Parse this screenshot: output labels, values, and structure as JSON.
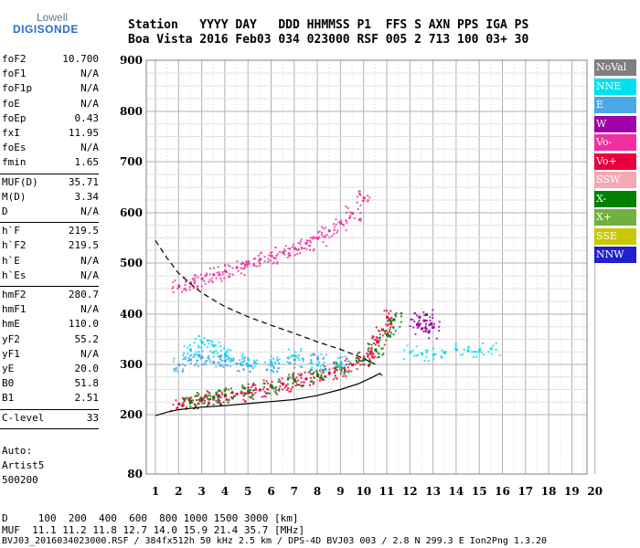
{
  "logo": {
    "line1": "Lowell",
    "line2": "DIGISONDE"
  },
  "header": {
    "line1": "Station   YYYY DAY   DDD HHMMSS P1  FFS S AXN PPS IGA PS",
    "line2": "Boa Vista 2016 Feb03 034 023000 RSF 005 2 713 100 03+ 30"
  },
  "params": [
    {
      "group": [
        {
          "k": "foF2",
          "v": "10.700"
        },
        {
          "k": "foF1",
          "v": "N/A"
        },
        {
          "k": "foF1p",
          "v": "N/A"
        },
        {
          "k": "foE",
          "v": "N/A"
        },
        {
          "k": "foEp",
          "v": "0.43"
        },
        {
          "k": "fxI",
          "v": "11.95"
        },
        {
          "k": "foEs",
          "v": "N/A"
        },
        {
          "k": "fmin",
          "v": "1.65"
        }
      ]
    },
    {
      "group": [
        {
          "k": "MUF(D)",
          "v": "35.71"
        },
        {
          "k": "M(D)",
          "v": "3.34"
        },
        {
          "k": "D",
          "v": "N/A"
        }
      ]
    },
    {
      "group": [
        {
          "k": "h`F",
          "v": "219.5"
        },
        {
          "k": "h`F2",
          "v": "219.5"
        },
        {
          "k": "h`E",
          "v": "N/A"
        },
        {
          "k": "h`Es",
          "v": "N/A"
        }
      ]
    },
    {
      "group": [
        {
          "k": "hmF2",
          "v": "280.7"
        },
        {
          "k": "hmF1",
          "v": "N/A"
        },
        {
          "k": "hmE",
          "v": "110.0"
        },
        {
          "k": "yF2",
          "v": "55.2"
        },
        {
          "k": "yF1",
          "v": "N/A"
        },
        {
          "k": "yE",
          "v": "20.0"
        },
        {
          "k": "B0",
          "v": "51.8"
        },
        {
          "k": "B1",
          "v": "2.51"
        }
      ]
    },
    {
      "group": [
        {
          "k": "C-level",
          "v": "33"
        }
      ]
    }
  ],
  "auto": {
    "line1": "Auto:",
    "line2": "Artist5",
    "line3": "500200"
  },
  "footer": {
    "d_row": "D     100  200  400  600  800 1000 1500 3000 [km]",
    "muf_row": "MUF  11.1 11.2 11.8 12.7 14.0 15.9 21.4 35.7 [MHz]",
    "file_row": "BVJ03_2016034023000.RSF / 384fx512h 50 kHz 2.5 km / DPS-4D BVJ03 003 / 2.8 N 299.3 E Ion2Png 1.3.20"
  },
  "legend": [
    {
      "label": "NoVal",
      "color": "#7f7f7f"
    },
    {
      "label": "NNE",
      "color": "#00e0f0"
    },
    {
      "label": "E",
      "color": "#4aa8e8"
    },
    {
      "label": "W",
      "color": "#a000a8"
    },
    {
      "label": "Vo-",
      "color": "#f030a0"
    },
    {
      "label": "Vo+",
      "color": "#e8003c"
    },
    {
      "label": "SSW",
      "color": "#f4a8b0"
    },
    {
      "label": "X-",
      "color": "#008000"
    },
    {
      "label": "X+",
      "color": "#70b040"
    },
    {
      "label": "SSE",
      "color": "#c8c800"
    },
    {
      "label": "NNW",
      "color": "#2020d0"
    }
  ],
  "chart_data": {
    "type": "scatter",
    "x_ticks": [
      1,
      2,
      3,
      4,
      5,
      6,
      7,
      8,
      9,
      10,
      11,
      12,
      13,
      14,
      15,
      16,
      17,
      18,
      19,
      20
    ],
    "y_ticks": [
      80,
      200,
      300,
      400,
      500,
      600,
      700,
      800,
      900
    ],
    "xlim": [
      1,
      20
    ],
    "ylim": [
      80,
      900
    ],
    "grid": true,
    "series": [
      {
        "name": "Vo+",
        "color": "#e8003c",
        "x": [
          2.0,
          2.5,
          3.0,
          3.5,
          4.0,
          4.5,
          5.0,
          5.5,
          6.0,
          6.5,
          7.0,
          7.5,
          8.0,
          8.5,
          9.0,
          9.5,
          10.0,
          10.3,
          10.6,
          10.8,
          11.0
        ],
        "y": [
          222,
          226,
          230,
          234,
          238,
          242,
          246,
          250,
          256,
          262,
          268,
          272,
          278,
          284,
          292,
          300,
          312,
          325,
          345,
          370,
          395
        ]
      },
      {
        "name": "X-",
        "color": "#008000",
        "x": [
          2.5,
          3.0,
          3.5,
          4.0,
          5.0,
          6.0,
          7.0,
          8.0,
          9.0,
          10.0,
          10.5,
          11.0,
          11.3
        ],
        "y": [
          228,
          232,
          236,
          240,
          248,
          258,
          270,
          280,
          292,
          310,
          330,
          360,
          390
        ]
      },
      {
        "name": "Vo-",
        "color": "#f030a0",
        "x": [
          2.0,
          2.5,
          3.0,
          3.5,
          4.0,
          4.5,
          5.0,
          5.5,
          6.0,
          6.5,
          7.0,
          7.5,
          8.0,
          8.5,
          9.0,
          9.5,
          10.0
        ],
        "y": [
          455,
          462,
          470,
          478,
          485,
          492,
          500,
          508,
          515,
          522,
          530,
          540,
          550,
          565,
          580,
          600,
          630
        ]
      },
      {
        "name": "W",
        "color": "#a000a8",
        "x": [
          12.3,
          12.4,
          12.5,
          12.6,
          12.7,
          12.8,
          12.9,
          13.0
        ],
        "y": [
          380,
          395,
          372,
          388,
          400,
          365,
          382,
          375
        ]
      },
      {
        "name": "NNE",
        "color": "#00e0f0",
        "x": [
          2.5,
          3.0,
          3.5,
          4.0,
          5.0,
          6.0,
          7.0,
          8.0,
          9.0,
          12.0,
          12.5,
          13.0,
          13.5,
          14.0,
          14.5,
          15.0,
          15.5
        ],
        "y": [
          330,
          345,
          338,
          322,
          310,
          305,
          318,
          300,
          305,
          325,
          322,
          320,
          325,
          330,
          328,
          330,
          332
        ]
      },
      {
        "name": "E",
        "color": "#4aa8e8",
        "x": [
          2.0,
          2.5,
          3.0,
          3.5,
          4.0,
          4.5,
          5.0,
          6.0,
          7.0,
          8.0
        ],
        "y": [
          300,
          310,
          315,
          305,
          308,
          302,
          298,
          300,
          310,
          312
        ]
      }
    ],
    "lines": [
      {
        "name": "",
        "style": "solid",
        "x": [
          1.0,
          1.5,
          2.0,
          3.0,
          4.0,
          5.0,
          6.0,
          7.0,
          8.0,
          9.0,
          9.8,
          10.4,
          10.7,
          10.8
        ],
        "y": [
          198,
          205,
          210,
          215,
          218,
          222,
          226,
          230,
          238,
          250,
          262,
          275,
          282,
          278
        ]
      },
      {
        "name": "",
        "style": "dashed",
        "x": [
          1.0,
          1.5,
          2.0,
          2.5,
          3.0,
          3.5,
          4.0,
          5.0,
          6.0,
          7.0,
          8.0,
          9.0,
          10.0,
          10.5
        ],
        "y": [
          545,
          510,
          480,
          460,
          442,
          428,
          415,
          395,
          378,
          362,
          345,
          330,
          312,
          300
        ]
      }
    ]
  }
}
